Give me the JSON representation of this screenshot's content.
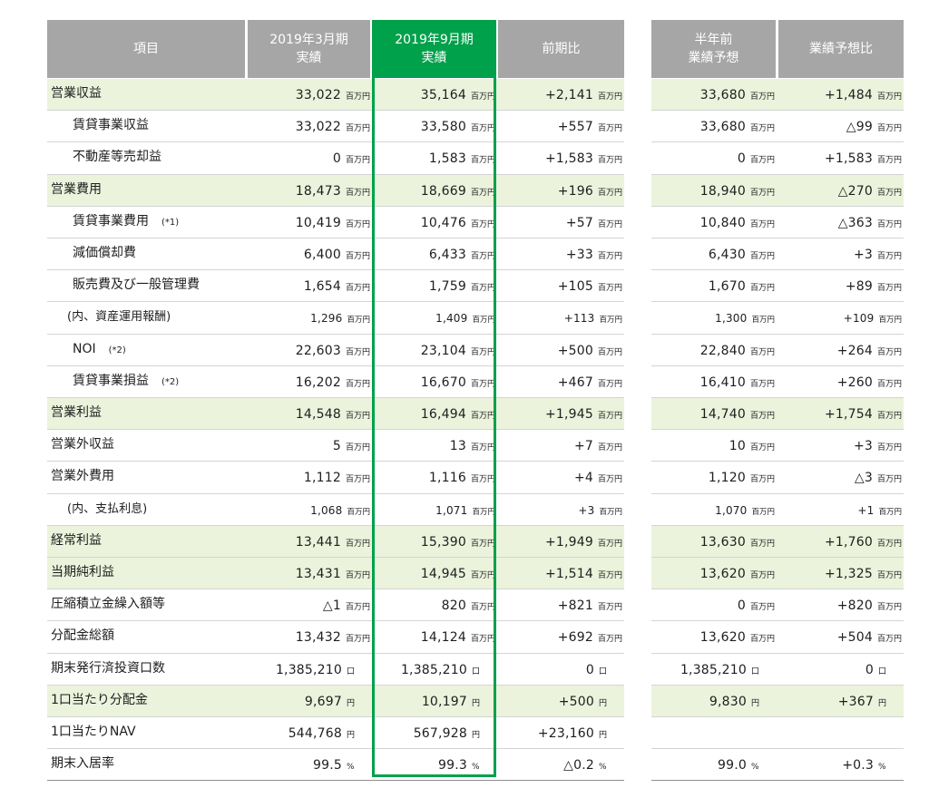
{
  "columns": {
    "item": "項目",
    "mar": [
      "2019年3月期",
      "実績"
    ],
    "sep": [
      "2019年9月期",
      "実績"
    ],
    "prev": [
      "前期比"
    ],
    "fc": [
      "半年前",
      "業績予想"
    ],
    "fcdiff": [
      "業績予想比"
    ]
  },
  "units": {
    "million": "百万円",
    "units": "口",
    "yen": "円",
    "percent": "%"
  },
  "colors": {
    "header_gray": "#a6a6a6",
    "highlight_green": "#00a14b",
    "row_band": "#ebf3dc"
  },
  "rows": [
    {
      "label": "営業収益",
      "note": "",
      "indent": false,
      "shaded": true,
      "small": false,
      "unit": "million",
      "mar": "33,022",
      "sep": "35,164",
      "prev": "+2,141",
      "fc": "33,680",
      "fcdiff": "+1,484"
    },
    {
      "label": "賃貸事業収益",
      "note": "",
      "indent": true,
      "shaded": false,
      "small": false,
      "unit": "million",
      "mar": "33,022",
      "sep": "33,580",
      "prev": "+557",
      "fc": "33,680",
      "fcdiff": "△99"
    },
    {
      "label": "不動産等売却益",
      "note": "",
      "indent": true,
      "shaded": false,
      "small": false,
      "unit": "million",
      "mar": "0",
      "sep": "1,583",
      "prev": "+1,583",
      "fc": "0",
      "fcdiff": "+1,583"
    },
    {
      "label": "営業費用",
      "note": "",
      "indent": false,
      "shaded": true,
      "small": false,
      "unit": "million",
      "mar": "18,473",
      "sep": "18,669",
      "prev": "+196",
      "fc": "18,940",
      "fcdiff": "△270"
    },
    {
      "label": "賃貸事業費用",
      "note": "(*1)",
      "indent": true,
      "shaded": false,
      "small": false,
      "unit": "million",
      "mar": "10,419",
      "sep": "10,476",
      "prev": "+57",
      "fc": "10,840",
      "fcdiff": "△363"
    },
    {
      "label": "減価償却費",
      "note": "",
      "indent": true,
      "shaded": false,
      "small": false,
      "unit": "million",
      "mar": "6,400",
      "sep": "6,433",
      "prev": "+33",
      "fc": "6,430",
      "fcdiff": "+3"
    },
    {
      "label": "販売費及び一般管理費",
      "note": "",
      "indent": true,
      "shaded": false,
      "small": false,
      "unit": "million",
      "mar": "1,654",
      "sep": "1,759",
      "prev": "+105",
      "fc": "1,670",
      "fcdiff": "+89"
    },
    {
      "label": "(内、資産運用報酬)",
      "note": "",
      "indent": true,
      "shaded": false,
      "small": true,
      "unit": "million",
      "mar": "1,296",
      "sep": "1,409",
      "prev": "+113",
      "fc": "1,300",
      "fcdiff": "+109"
    },
    {
      "label": "NOI",
      "note": "(*2)",
      "indent": true,
      "shaded": false,
      "small": false,
      "unit": "million",
      "mar": "22,603",
      "sep": "23,104",
      "prev": "+500",
      "fc": "22,840",
      "fcdiff": "+264"
    },
    {
      "label": "賃貸事業損益",
      "note": "(*2)",
      "indent": true,
      "shaded": false,
      "small": false,
      "unit": "million",
      "mar": "16,202",
      "sep": "16,670",
      "prev": "+467",
      "fc": "16,410",
      "fcdiff": "+260"
    },
    {
      "label": "営業利益",
      "note": "",
      "indent": false,
      "shaded": true,
      "small": false,
      "unit": "million",
      "mar": "14,548",
      "sep": "16,494",
      "prev": "+1,945",
      "fc": "14,740",
      "fcdiff": "+1,754"
    },
    {
      "label": "営業外収益",
      "note": "",
      "indent": false,
      "shaded": false,
      "small": false,
      "unit": "million",
      "mar": "5",
      "sep": "13",
      "prev": "+7",
      "fc": "10",
      "fcdiff": "+3"
    },
    {
      "label": "営業外費用",
      "note": "",
      "indent": false,
      "shaded": false,
      "small": false,
      "unit": "million",
      "mar": "1,112",
      "sep": "1,116",
      "prev": "+4",
      "fc": "1,120",
      "fcdiff": "△3"
    },
    {
      "label": "(内、支払利息)",
      "note": "",
      "indent": true,
      "shaded": false,
      "small": true,
      "unit": "million",
      "mar": "1,068",
      "sep": "1,071",
      "prev": "+3",
      "fc": "1,070",
      "fcdiff": "+1"
    },
    {
      "label": "経常利益",
      "note": "",
      "indent": false,
      "shaded": true,
      "small": false,
      "unit": "million",
      "mar": "13,441",
      "sep": "15,390",
      "prev": "+1,949",
      "fc": "13,630",
      "fcdiff": "+1,760"
    },
    {
      "label": "当期純利益",
      "note": "",
      "indent": false,
      "shaded": true,
      "small": false,
      "unit": "million",
      "mar": "13,431",
      "sep": "14,945",
      "prev": "+1,514",
      "fc": "13,620",
      "fcdiff": "+1,325"
    },
    {
      "label": "圧縮積立金繰入額等",
      "note": "",
      "indent": false,
      "shaded": false,
      "small": false,
      "unit": "million",
      "mar": "△1",
      "sep": "820",
      "prev": "+821",
      "fc": "0",
      "fcdiff": "+820"
    },
    {
      "label": "分配金総額",
      "note": "",
      "indent": false,
      "shaded": false,
      "small": false,
      "unit": "million",
      "mar": "13,432",
      "sep": "14,124",
      "prev": "+692",
      "fc": "13,620",
      "fcdiff": "+504"
    },
    {
      "label": "期末発行済投資口数",
      "note": "",
      "indent": false,
      "shaded": false,
      "small": false,
      "unit": "units",
      "mar": "1,385,210",
      "sep": "1,385,210",
      "prev": "0",
      "fc": "1,385,210",
      "fcdiff": "0"
    },
    {
      "label": "1口当たり分配金",
      "note": "",
      "indent": false,
      "shaded": true,
      "small": false,
      "unit": "yen",
      "mar": "9,697",
      "sep": "10,197",
      "prev": "+500",
      "fc": "9,830",
      "fcdiff": "+367"
    },
    {
      "label": "1口当たりNAV",
      "note": "",
      "indent": false,
      "shaded": false,
      "small": false,
      "unit": "yen",
      "mar": "544,768",
      "sep": "567,928",
      "prev": "+23,160",
      "fc": "",
      "fcdiff": ""
    },
    {
      "label": "期末入居率",
      "note": "",
      "indent": false,
      "shaded": false,
      "small": false,
      "unit": "percent",
      "mar": "99.5",
      "sep": "99.3",
      "prev": "△0.2",
      "fc": "99.0",
      "fcdiff": "+0.3"
    }
  ]
}
